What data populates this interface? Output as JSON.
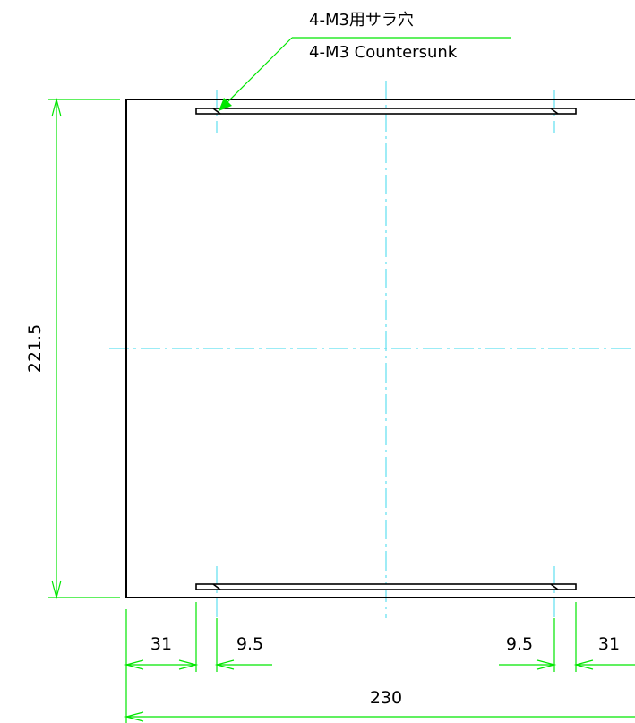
{
  "drawing": {
    "callout": {
      "line1": "4-M3用サラ穴",
      "line2": "4-M3 Countersunk"
    },
    "dimensions": {
      "height": "221.5",
      "width": "230",
      "left_offset": "31",
      "left_hole": "9.5",
      "right_hole": "9.5",
      "right_offset": "31"
    },
    "colors": {
      "outline": "#000000",
      "dimension": "#00e600",
      "centerline": "#5fe0f0"
    }
  }
}
